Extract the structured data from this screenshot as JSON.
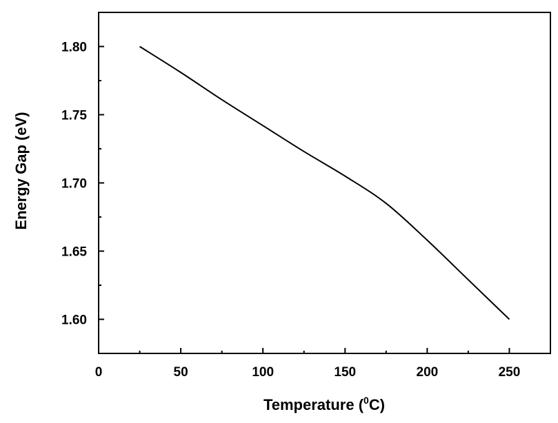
{
  "chart_data": {
    "type": "line",
    "title": "",
    "xlabel": "Temperature (",
    "xlabel_superscript": "0",
    "xlabel_suffix": "C)",
    "ylabel": "Energy Gap (eV)",
    "xlim": [
      0,
      275
    ],
    "ylim": [
      1.575,
      1.825
    ],
    "x_ticks": [
      0,
      50,
      100,
      150,
      200,
      250
    ],
    "x_tick_labels": [
      "0",
      "50",
      "100",
      "150",
      "200",
      "250"
    ],
    "y_ticks": [
      1.6,
      1.65,
      1.7,
      1.75,
      1.8
    ],
    "y_tick_labels": [
      "1.60",
      "1.65",
      "1.70",
      "1.75",
      "1.80"
    ],
    "grid": false,
    "legend": "none",
    "line_color": "#000000",
    "series": [
      {
        "x": [
          25,
          50,
          75,
          100,
          125,
          150,
          175,
          200,
          225,
          250
        ],
        "y": [
          1.8,
          1.781,
          1.761,
          1.742,
          1.723,
          1.705,
          1.685,
          1.658,
          1.629,
          1.6
        ]
      }
    ]
  }
}
